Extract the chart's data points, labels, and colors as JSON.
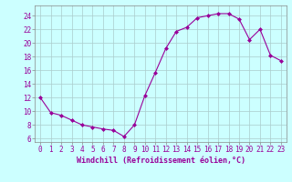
{
  "x": [
    0,
    1,
    2,
    3,
    4,
    5,
    6,
    7,
    8,
    9,
    10,
    11,
    12,
    13,
    14,
    15,
    16,
    17,
    18,
    19,
    20,
    21,
    22,
    23
  ],
  "y": [
    12,
    9.8,
    9.4,
    8.7,
    8.0,
    7.7,
    7.4,
    7.2,
    6.3,
    8.0,
    12.3,
    15.7,
    19.2,
    21.7,
    22.3,
    23.7,
    24.0,
    24.3,
    24.3,
    23.5,
    20.5,
    22.0,
    18.2,
    17.4
  ],
  "line_color": "#990099",
  "marker": "D",
  "marker_size": 2.0,
  "bg_color": "#ccffff",
  "grid_color": "#aacccc",
  "xlabel": "Windchill (Refroidissement éolien,°C)",
  "xlabel_color": "#990099",
  "xlabel_fontsize": 6.0,
  "tick_color": "#990099",
  "tick_fontsize": 5.5,
  "yticks": [
    6,
    8,
    10,
    12,
    14,
    16,
    18,
    20,
    22,
    24
  ],
  "ylim": [
    5.5,
    25.5
  ],
  "xlim": [
    -0.5,
    23.5
  ],
  "title": ""
}
